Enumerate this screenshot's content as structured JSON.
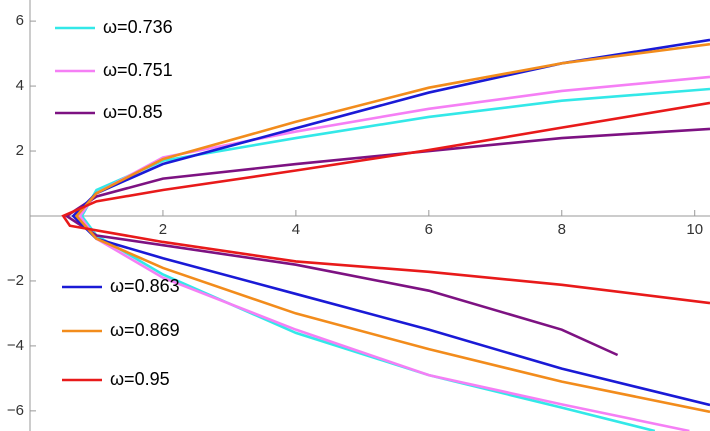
{
  "chart_data": {
    "type": "parametric-line",
    "xlim": [
      0,
      10.23
    ],
    "ylim": [
      -6.62,
      6.65
    ],
    "xticks": [
      2,
      4,
      6,
      8,
      10
    ],
    "yticks": [
      {
        "value": -6,
        "label": "−6"
      },
      {
        "value": -4,
        "label": "−4"
      },
      {
        "value": -2,
        "label": "−2"
      },
      2,
      4,
      6
    ],
    "series": [
      {
        "name": "ω=0.736",
        "color": "#33e8e8",
        "x": [
          9.4,
          8,
          6,
          4,
          2,
          1,
          0.78,
          1,
          2,
          4,
          6,
          8,
          10.23
        ],
        "y": [
          -6.62,
          -5.9,
          -4.9,
          -3.6,
          -1.8,
          -0.6,
          0,
          0.8,
          1.7,
          2.4,
          3.05,
          3.55,
          3.91
        ]
      },
      {
        "name": "ω=0.751",
        "color": "#f57ff5",
        "x": [
          9.92,
          8,
          6,
          4,
          2,
          1,
          0.75,
          1,
          2,
          4,
          6,
          8,
          10.23
        ],
        "y": [
          -6.62,
          -5.8,
          -4.9,
          -3.5,
          -1.9,
          -0.7,
          0,
          0.7,
          1.8,
          2.6,
          3.3,
          3.85,
          4.28
        ]
      },
      {
        "name": "ω=0.85",
        "color": "#7d1282",
        "x": [
          8.84,
          8,
          6,
          4,
          2,
          1,
          0.55,
          1,
          2,
          4,
          6,
          8,
          10.23
        ],
        "y": [
          -4.28,
          -3.5,
          -2.3,
          -1.5,
          -0.9,
          -0.6,
          0,
          0.6,
          1.15,
          1.6,
          2.0,
          2.4,
          2.68
        ]
      },
      {
        "name": "ω=0.863",
        "color": "#1a1ad6",
        "x": [
          10.23,
          8,
          6,
          4,
          2,
          1,
          0.65,
          1,
          2,
          4,
          6,
          8,
          10.23
        ],
        "y": [
          -5.82,
          -4.7,
          -3.5,
          -2.4,
          -1.3,
          -0.7,
          0,
          0.7,
          1.6,
          2.7,
          3.8,
          4.7,
          5.42
        ]
      },
      {
        "name": "ω=0.869",
        "color": "#f28c1c",
        "x": [
          10.23,
          8,
          6,
          4,
          2,
          1,
          0.7,
          1,
          2,
          4,
          6,
          8,
          10.23
        ],
        "y": [
          -6.03,
          -5.1,
          -4.1,
          -3.0,
          -1.6,
          -0.7,
          0,
          0.7,
          1.75,
          2.9,
          3.95,
          4.7,
          5.29
        ]
      },
      {
        "name": "ω=0.95",
        "color": "#e81a1a",
        "x": [
          10.23,
          8,
          6,
          4,
          2,
          0.6,
          0.5,
          1,
          2,
          4,
          6,
          8,
          10.23
        ],
        "y": [
          -2.68,
          -2.12,
          -1.72,
          -1.4,
          -0.8,
          -0.3,
          0,
          0.45,
          0.8,
          1.4,
          2.03,
          2.72,
          3.48
        ]
      }
    ]
  }
}
